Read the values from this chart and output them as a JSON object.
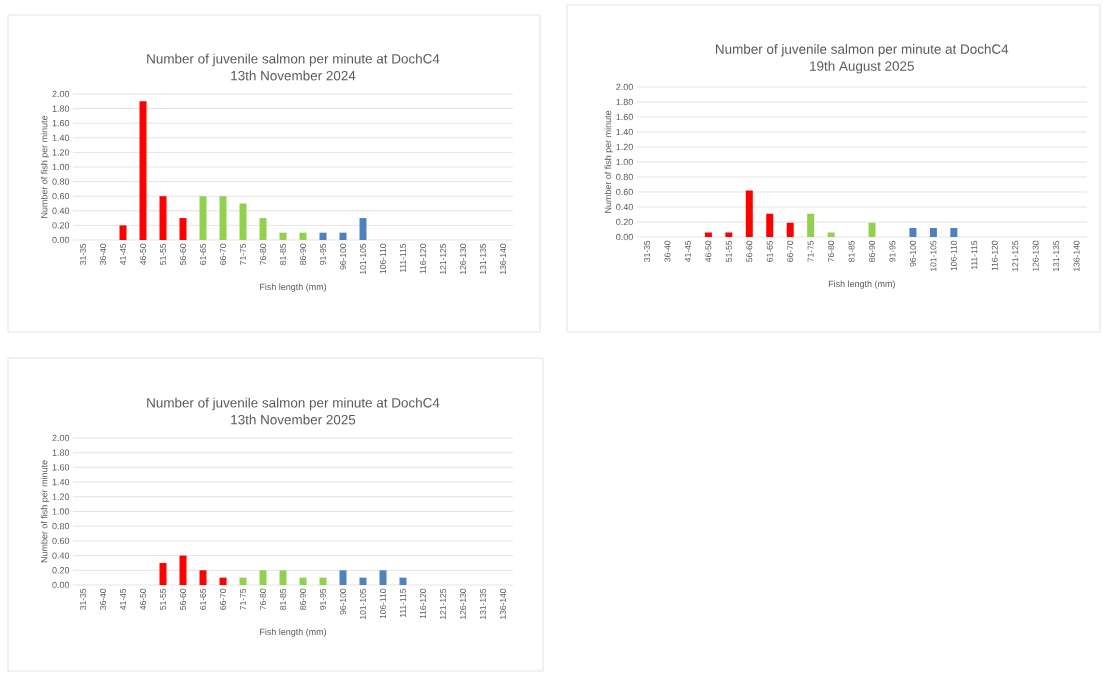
{
  "chart_data": [
    {
      "type": "bar",
      "title": "Number of juvenile salmon per minute at DochC4",
      "subtitle": "13th November 2024",
      "xlabel": "Fish length (mm)",
      "ylabel": "Number of fish per minute",
      "categories": [
        "31-35",
        "36-40",
        "41-45",
        "46-50",
        "51-55",
        "56-60",
        "61-65",
        "66-70",
        "71-75",
        "76-80",
        "81-85",
        "86-90",
        "91-95",
        "96-100",
        "101-105",
        "106-110",
        "111-115",
        "116-120",
        "121-125",
        "126-130",
        "131-135",
        "136-140"
      ],
      "values": [
        0,
        0,
        0.2,
        1.9,
        0.6,
        0.3,
        0.6,
        0.6,
        0.5,
        0.3,
        0.1,
        0.1,
        0.1,
        0.1,
        0.3,
        0,
        0,
        0,
        0,
        0,
        0,
        0
      ],
      "colors": [
        "#ff0000",
        "#ff0000",
        "#ff0000",
        "#ff0000",
        "#ff0000",
        "#ff0000",
        "#92d050",
        "#92d050",
        "#92d050",
        "#92d050",
        "#92d050",
        "#92d050",
        "#4f81bd",
        "#4f81bd",
        "#4f81bd",
        "#4f81bd",
        "#4f81bd",
        "#4f81bd",
        "#4f81bd",
        "#4f81bd",
        "#4f81bd",
        "#4f81bd"
      ],
      "ylim": [
        0,
        2
      ],
      "yticks": [
        {
          "value": 0,
          "label": "0.00"
        },
        {
          "value": 0.2,
          "label": "0.20"
        },
        {
          "value": 0.4,
          "label": "0.40"
        },
        {
          "value": 0.6,
          "label": "0.60"
        },
        {
          "value": 0.8,
          "label": "0.80"
        },
        {
          "value": 1,
          "label": "1.00"
        },
        {
          "value": 1.2,
          "label": "1.20"
        },
        {
          "value": 1.4,
          "label": "1.40"
        },
        {
          "value": 1.6,
          "label": "1.60"
        },
        {
          "value": 1.8,
          "label": "1.80"
        },
        {
          "value": 2,
          "label": "2.00"
        }
      ],
      "grid": "y"
    },
    {
      "type": "bar",
      "title": "Number of juvenile salmon per minute at DochC4",
      "subtitle": "19th August 2025",
      "xlabel": "Fish length (mm)",
      "ylabel": "Number of fish per minute",
      "categories": [
        "31-35",
        "36-40",
        "41-45",
        "46-50",
        "51-55",
        "56-60",
        "61-65",
        "66-70",
        "71-75",
        "76-80",
        "81-85",
        "86-90",
        "91-95",
        "96-100",
        "101-105",
        "106-110",
        "111-115",
        "116-120",
        "121-125",
        "126-130",
        "131-135",
        "136-140"
      ],
      "values": [
        0,
        0,
        0,
        0.06,
        0.06,
        0.62,
        0.31,
        0.19,
        0.31,
        0.06,
        0,
        0.19,
        0,
        0.12,
        0.12,
        0.12,
        0,
        0,
        0,
        0,
        0,
        0
      ],
      "colors": [
        "#ff0000",
        "#ff0000",
        "#ff0000",
        "#ff0000",
        "#ff0000",
        "#ff0000",
        "#ff0000",
        "#ff0000",
        "#92d050",
        "#92d050",
        "#92d050",
        "#92d050",
        "#92d050",
        "#4f81bd",
        "#4f81bd",
        "#4f81bd",
        "#4f81bd",
        "#4f81bd",
        "#4f81bd",
        "#4f81bd",
        "#4f81bd",
        "#4f81bd"
      ],
      "ylim": [
        0,
        2
      ],
      "yticks": [
        {
          "value": 0,
          "label": "0.00"
        },
        {
          "value": 0.2,
          "label": "0.20"
        },
        {
          "value": 0.4,
          "label": "0.40"
        },
        {
          "value": 0.6,
          "label": "0.60"
        },
        {
          "value": 0.8,
          "label": "0.80"
        },
        {
          "value": 1,
          "label": "1.00"
        },
        {
          "value": 1.2,
          "label": "1.20"
        },
        {
          "value": 1.4,
          "label": "1.40"
        },
        {
          "value": 1.6,
          "label": "1.60"
        },
        {
          "value": 1.8,
          "label": "1.80"
        },
        {
          "value": 2,
          "label": "2.00"
        }
      ],
      "grid": "y"
    },
    {
      "type": "bar",
      "title": "Number of juvenile salmon per minute at DochC4",
      "subtitle": "13th November 2025",
      "xlabel": "Fish length (mm)",
      "ylabel": "Number of fish per minute",
      "categories": [
        "31-35",
        "36-40",
        "41-45",
        "46-50",
        "51-55",
        "56-60",
        "61-65",
        "66-70",
        "71-75",
        "76-80",
        "81-85",
        "86-90",
        "91-95",
        "96-100",
        "101-105",
        "106-110",
        "111-115",
        "116-120",
        "121-125",
        "126-130",
        "131-135",
        "136-140"
      ],
      "values": [
        0,
        0,
        0,
        0,
        0.3,
        0.4,
        0.2,
        0.1,
        0.1,
        0.2,
        0.2,
        0.1,
        0.1,
        0.2,
        0.1,
        0.2,
        0.1,
        0,
        0,
        0,
        0,
        0
      ],
      "colors": [
        "#ff0000",
        "#ff0000",
        "#ff0000",
        "#ff0000",
        "#ff0000",
        "#ff0000",
        "#ff0000",
        "#ff0000",
        "#92d050",
        "#92d050",
        "#92d050",
        "#92d050",
        "#92d050",
        "#4f81bd",
        "#4f81bd",
        "#4f81bd",
        "#4f81bd",
        "#4f81bd",
        "#4f81bd",
        "#4f81bd",
        "#4f81bd",
        "#4f81bd"
      ],
      "ylim": [
        0,
        2
      ],
      "yticks": [
        {
          "value": 0,
          "label": "0.00"
        },
        {
          "value": 0.2,
          "label": "0.20"
        },
        {
          "value": 0.4,
          "label": "0.40"
        },
        {
          "value": 0.6,
          "label": "0.60"
        },
        {
          "value": 0.8,
          "label": "0.80"
        },
        {
          "value": 1,
          "label": "1.00"
        },
        {
          "value": 1.2,
          "label": "1.20"
        },
        {
          "value": 1.4,
          "label": "1.40"
        },
        {
          "value": 1.6,
          "label": "1.60"
        },
        {
          "value": 1.8,
          "label": "1.80"
        },
        {
          "value": 2,
          "label": "2.00"
        }
      ],
      "grid": "y"
    }
  ]
}
